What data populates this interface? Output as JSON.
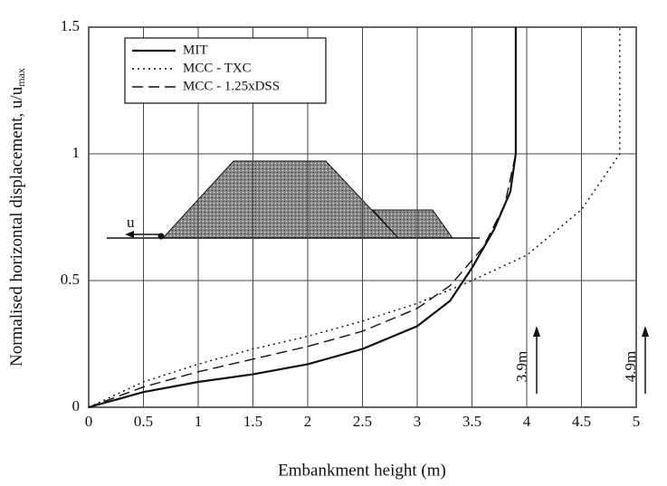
{
  "chart_data": {
    "type": "line",
    "xlabel": "Embankment height (m)",
    "ylabel": "Normalised horizontal displacement, u/u",
    "ylabel_sub": "max",
    "xlim": [
      0,
      5
    ],
    "ylim": [
      0,
      1.5
    ],
    "xticks": [
      0,
      0.5,
      1,
      1.5,
      2,
      2.5,
      3,
      3.5,
      4,
      4.5,
      5
    ],
    "yticks": [
      0,
      0.5,
      1,
      1.5
    ],
    "grid": true,
    "legend": "upper left",
    "series": [
      {
        "name": "MIT",
        "color": "#111111",
        "style": "solid",
        "x": [
          0,
          0.5,
          1,
          1.5,
          2,
          2.5,
          3,
          3.3,
          3.5,
          3.7,
          3.85,
          3.9,
          3.9
        ],
        "values": [
          0,
          0.06,
          0.1,
          0.13,
          0.17,
          0.23,
          0.32,
          0.42,
          0.55,
          0.7,
          0.85,
          1.0,
          1.5
        ]
      },
      {
        "name": "MCC - TXC",
        "color": "#111111",
        "style": "dotted",
        "x": [
          0,
          0.5,
          1,
          1.5,
          2,
          2.5,
          3,
          3.5,
          4,
          4.5,
          4.85,
          4.85
        ],
        "values": [
          0,
          0.1,
          0.17,
          0.23,
          0.28,
          0.34,
          0.41,
          0.5,
          0.6,
          0.78,
          1.0,
          1.5
        ]
      },
      {
        "name": "MCC - 1.25xDSS",
        "color": "#111111",
        "style": "dashed",
        "x": [
          0,
          0.5,
          1,
          1.5,
          2,
          2.5,
          3,
          3.3,
          3.6,
          3.8,
          3.9,
          3.9
        ],
        "values": [
          0,
          0.08,
          0.14,
          0.19,
          0.24,
          0.3,
          0.39,
          0.48,
          0.63,
          0.8,
          1.0,
          1.5
        ]
      }
    ],
    "annotations": [
      "3.9m",
      "4.9m",
      "u"
    ]
  }
}
